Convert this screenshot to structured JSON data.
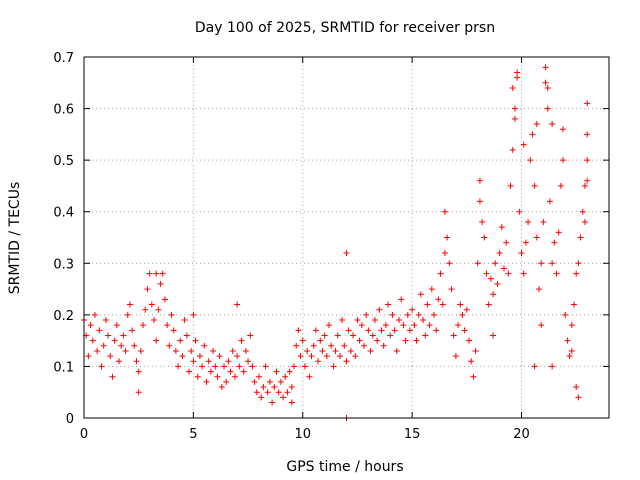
{
  "chart_data": {
    "type": "scatter",
    "title": "Day 100 of 2025, SRMTID for receiver prsn",
    "xlabel": "GPS time / hours",
    "ylabel": "SRMTID / TECUs",
    "xlim": [
      0,
      24
    ],
    "ylim": [
      0,
      0.7
    ],
    "xticks": [
      0,
      5,
      10,
      15,
      20
    ],
    "xtick_labels": [
      "0",
      "5",
      "10",
      "15",
      "20"
    ],
    "yticks": [
      0,
      0.1,
      0.2,
      0.3,
      0.4,
      0.5,
      0.6,
      0.7
    ],
    "ytick_labels": [
      "0",
      "0.1",
      "0.2",
      "0.3",
      "0.4",
      "0.5",
      "0.6",
      "0.7"
    ],
    "grid": true,
    "marker": "+",
    "color": "#ff0000",
    "series": [
      {
        "name": "SRMTID",
        "points": [
          [
            0.0,
            0.19
          ],
          [
            0.1,
            0.16
          ],
          [
            0.2,
            0.12
          ],
          [
            0.3,
            0.18
          ],
          [
            0.4,
            0.15
          ],
          [
            0.5,
            0.2
          ],
          [
            0.6,
            0.13
          ],
          [
            0.7,
            0.17
          ],
          [
            0.8,
            0.1
          ],
          [
            0.9,
            0.14
          ],
          [
            1.0,
            0.19
          ],
          [
            1.1,
            0.16
          ],
          [
            1.2,
            0.12
          ],
          [
            1.3,
            0.08
          ],
          [
            1.4,
            0.15
          ],
          [
            1.5,
            0.18
          ],
          [
            1.6,
            0.11
          ],
          [
            1.7,
            0.14
          ],
          [
            1.8,
            0.16
          ],
          [
            1.9,
            0.13
          ],
          [
            2.0,
            0.2
          ],
          [
            2.1,
            0.22
          ],
          [
            2.2,
            0.17
          ],
          [
            2.3,
            0.14
          ],
          [
            2.4,
            0.11
          ],
          [
            2.5,
            0.09
          ],
          [
            2.6,
            0.13
          ],
          [
            2.7,
            0.18
          ],
          [
            2.8,
            0.21
          ],
          [
            2.9,
            0.25
          ],
          [
            3.0,
            0.28
          ],
          [
            3.1,
            0.22
          ],
          [
            3.2,
            0.19
          ],
          [
            3.3,
            0.15
          ],
          [
            3.4,
            0.21
          ],
          [
            3.5,
            0.26
          ],
          [
            3.6,
            0.28
          ],
          [
            3.7,
            0.23
          ],
          [
            3.8,
            0.18
          ],
          [
            3.9,
            0.14
          ],
          [
            4.0,
            0.2
          ],
          [
            4.1,
            0.17
          ],
          [
            4.2,
            0.13
          ],
          [
            4.3,
            0.1
          ],
          [
            4.4,
            0.15
          ],
          [
            4.5,
            0.12
          ],
          [
            4.6,
            0.19
          ],
          [
            4.7,
            0.16
          ],
          [
            4.8,
            0.09
          ],
          [
            4.9,
            0.13
          ],
          [
            5.0,
            0.11
          ],
          [
            5.1,
            0.15
          ],
          [
            5.2,
            0.08
          ],
          [
            5.3,
            0.12
          ],
          [
            5.4,
            0.1
          ],
          [
            5.5,
            0.14
          ],
          [
            5.6,
            0.07
          ],
          [
            5.7,
            0.11
          ],
          [
            5.8,
            0.09
          ],
          [
            5.9,
            0.13
          ],
          [
            6.0,
            0.1
          ],
          [
            6.1,
            0.08
          ],
          [
            6.2,
            0.12
          ],
          [
            6.3,
            0.06
          ],
          [
            6.4,
            0.1
          ],
          [
            6.5,
            0.07
          ],
          [
            6.6,
            0.11
          ],
          [
            6.7,
            0.09
          ],
          [
            6.8,
            0.13
          ],
          [
            6.9,
            0.08
          ],
          [
            7.0,
            0.12
          ],
          [
            7.1,
            0.1
          ],
          [
            7.2,
            0.15
          ],
          [
            7.3,
            0.09
          ],
          [
            7.4,
            0.13
          ],
          [
            7.5,
            0.11
          ],
          [
            7.6,
            0.16
          ],
          [
            7.7,
            0.1
          ],
          [
            7.8,
            0.07
          ],
          [
            7.9,
            0.05
          ],
          [
            8.0,
            0.08
          ],
          [
            8.1,
            0.04
          ],
          [
            8.2,
            0.06
          ],
          [
            8.3,
            0.1
          ],
          [
            8.4,
            0.05
          ],
          [
            8.5,
            0.07
          ],
          [
            8.6,
            0.03
          ],
          [
            8.7,
            0.06
          ],
          [
            8.8,
            0.09
          ],
          [
            8.9,
            0.05
          ],
          [
            9.0,
            0.07
          ],
          [
            9.1,
            0.04
          ],
          [
            9.2,
            0.08
          ],
          [
            9.3,
            0.05
          ],
          [
            9.4,
            0.09
          ],
          [
            9.5,
            0.06
          ],
          [
            9.6,
            0.1
          ],
          [
            9.7,
            0.14
          ],
          [
            9.8,
            0.17
          ],
          [
            9.9,
            0.12
          ],
          [
            10.0,
            0.15
          ],
          [
            10.1,
            0.1
          ],
          [
            10.2,
            0.13
          ],
          [
            10.3,
            0.08
          ],
          [
            10.4,
            0.12
          ],
          [
            10.5,
            0.14
          ],
          [
            10.6,
            0.17
          ],
          [
            10.7,
            0.11
          ],
          [
            10.8,
            0.15
          ],
          [
            10.9,
            0.13
          ],
          [
            11.0,
            0.16
          ],
          [
            11.1,
            0.12
          ],
          [
            11.2,
            0.18
          ],
          [
            11.3,
            0.14
          ],
          [
            11.4,
            0.1
          ],
          [
            11.5,
            0.13
          ],
          [
            11.6,
            0.16
          ],
          [
            11.7,
            0.12
          ],
          [
            11.8,
            0.19
          ],
          [
            11.9,
            0.14
          ],
          [
            12.0,
            0.11
          ],
          [
            12.1,
            0.17
          ],
          [
            12.2,
            0.13
          ],
          [
            12.3,
            0.16
          ],
          [
            12.4,
            0.12
          ],
          [
            12.5,
            0.19
          ],
          [
            12.6,
            0.15
          ],
          [
            12.7,
            0.18
          ],
          [
            12.8,
            0.14
          ],
          [
            12.9,
            0.2
          ],
          [
            13.0,
            0.17
          ],
          [
            13.1,
            0.13
          ],
          [
            13.2,
            0.16
          ],
          [
            13.3,
            0.19
          ],
          [
            13.4,
            0.15
          ],
          [
            13.5,
            0.21
          ],
          [
            13.6,
            0.17
          ],
          [
            13.7,
            0.14
          ],
          [
            13.8,
            0.18
          ],
          [
            13.9,
            0.22
          ],
          [
            14.0,
            0.16
          ],
          [
            14.1,
            0.2
          ],
          [
            14.2,
            0.17
          ],
          [
            14.3,
            0.13
          ],
          [
            14.4,
            0.19
          ],
          [
            14.5,
            0.23
          ],
          [
            14.6,
            0.18
          ],
          [
            14.7,
            0.15
          ],
          [
            14.8,
            0.2
          ],
          [
            14.9,
            0.17
          ],
          [
            15.0,
            0.21
          ],
          [
            15.1,
            0.18
          ],
          [
            15.2,
            0.15
          ],
          [
            15.3,
            0.2
          ],
          [
            15.4,
            0.24
          ],
          [
            15.5,
            0.19
          ],
          [
            15.6,
            0.16
          ],
          [
            15.7,
            0.22
          ],
          [
            15.8,
            0.18
          ],
          [
            15.9,
            0.25
          ],
          [
            16.0,
            0.2
          ],
          [
            16.1,
            0.17
          ],
          [
            16.2,
            0.23
          ],
          [
            16.3,
            0.28
          ],
          [
            16.4,
            0.22
          ],
          [
            16.5,
            0.32
          ],
          [
            16.6,
            0.35
          ],
          [
            16.7,
            0.3
          ],
          [
            16.8,
            0.25
          ],
          [
            16.9,
            0.16
          ],
          [
            17.0,
            0.12
          ],
          [
            17.1,
            0.18
          ],
          [
            17.2,
            0.22
          ],
          [
            17.3,
            0.2
          ],
          [
            17.4,
            0.17
          ],
          [
            17.5,
            0.21
          ],
          [
            17.6,
            0.15
          ],
          [
            17.7,
            0.11
          ],
          [
            17.8,
            0.08
          ],
          [
            17.9,
            0.13
          ],
          [
            18.0,
            0.3
          ],
          [
            18.1,
            0.42
          ],
          [
            18.2,
            0.38
          ],
          [
            18.3,
            0.35
          ],
          [
            18.4,
            0.28
          ],
          [
            18.5,
            0.22
          ],
          [
            18.6,
            0.27
          ],
          [
            18.7,
            0.24
          ],
          [
            18.8,
            0.3
          ],
          [
            18.9,
            0.26
          ],
          [
            19.0,
            0.32
          ],
          [
            19.1,
            0.37
          ],
          [
            19.2,
            0.29
          ],
          [
            19.3,
            0.34
          ],
          [
            19.4,
            0.28
          ],
          [
            19.5,
            0.45
          ],
          [
            19.6,
            0.52
          ],
          [
            19.7,
            0.6
          ],
          [
            19.8,
            0.67
          ],
          [
            19.9,
            0.4
          ],
          [
            20.0,
            0.32
          ],
          [
            20.1,
            0.28
          ],
          [
            20.2,
            0.34
          ],
          [
            20.3,
            0.38
          ],
          [
            20.4,
            0.5
          ],
          [
            20.5,
            0.55
          ],
          [
            20.6,
            0.45
          ],
          [
            20.7,
            0.35
          ],
          [
            20.8,
            0.25
          ],
          [
            20.9,
            0.3
          ],
          [
            21.0,
            0.38
          ],
          [
            21.1,
            0.65
          ],
          [
            21.2,
            0.6
          ],
          [
            21.3,
            0.42
          ],
          [
            21.4,
            0.3
          ],
          [
            21.5,
            0.34
          ],
          [
            21.6,
            0.28
          ],
          [
            21.7,
            0.36
          ],
          [
            21.8,
            0.45
          ],
          [
            21.9,
            0.5
          ],
          [
            22.0,
            0.2
          ],
          [
            22.1,
            0.15
          ],
          [
            22.2,
            0.12
          ],
          [
            22.3,
            0.18
          ],
          [
            22.4,
            0.22
          ],
          [
            22.5,
            0.28
          ],
          [
            22.6,
            0.3
          ],
          [
            22.7,
            0.35
          ],
          [
            22.8,
            0.4
          ],
          [
            22.9,
            0.45
          ],
          [
            2.5,
            0.05
          ],
          [
            3.3,
            0.28
          ],
          [
            5.0,
            0.2
          ],
          [
            7.0,
            0.22
          ],
          [
            9.5,
            0.03
          ],
          [
            12.0,
            0.32
          ],
          [
            12.0,
            0.0
          ],
          [
            16.5,
            0.4
          ],
          [
            18.1,
            0.46
          ],
          [
            19.8,
            0.66
          ],
          [
            19.6,
            0.64
          ],
          [
            19.7,
            0.58
          ],
          [
            20.1,
            0.53
          ],
          [
            20.7,
            0.57
          ],
          [
            21.1,
            0.68
          ],
          [
            21.2,
            0.64
          ],
          [
            21.4,
            0.57
          ],
          [
            21.9,
            0.56
          ],
          [
            22.5,
            0.06
          ],
          [
            22.6,
            0.04
          ],
          [
            23.0,
            0.61
          ],
          [
            23.0,
            0.55
          ],
          [
            23.0,
            0.5
          ],
          [
            23.0,
            0.46
          ],
          [
            22.9,
            0.38
          ],
          [
            20.6,
            0.1
          ],
          [
            20.9,
            0.18
          ],
          [
            21.4,
            0.1
          ],
          [
            22.3,
            0.13
          ],
          [
            18.7,
            0.16
          ]
        ]
      }
    ]
  }
}
